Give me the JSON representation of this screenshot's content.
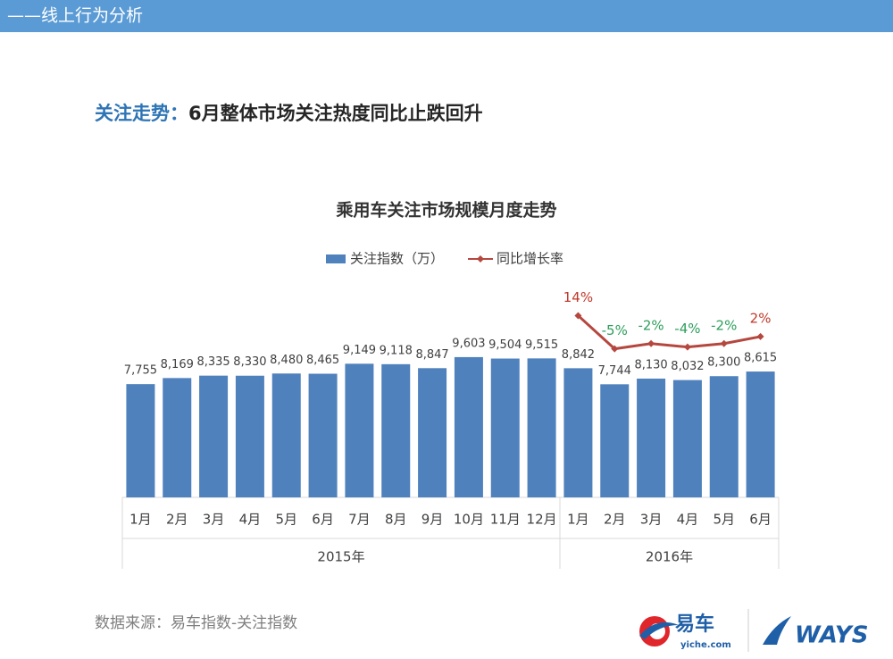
{
  "header": {
    "title": "——线上行为分析"
  },
  "heading": {
    "label": "关注走势：",
    "text": "6月整体市场关注热度同比止跌回升"
  },
  "chart_data": {
    "type": "bar",
    "title": "乘用车关注市场规模月度走势",
    "groups": [
      {
        "label": "2015年",
        "categories": [
          "1月",
          "2月",
          "3月",
          "4月",
          "5月",
          "6月",
          "7月",
          "8月",
          "9月",
          "10月",
          "11月",
          "12月"
        ]
      },
      {
        "label": "2016年",
        "categories": [
          "1月",
          "2月",
          "3月",
          "4月",
          "5月",
          "6月"
        ]
      }
    ],
    "ylim": [
      0,
      14000
    ],
    "y2lim": [
      -90,
      27
    ],
    "series": [
      {
        "name": "关注指数（万）",
        "type": "bar",
        "color": "#4f81bd",
        "values": [
          7755,
          8169,
          8335,
          8330,
          8480,
          8465,
          9149,
          9118,
          8847,
          9603,
          9504,
          9515,
          8842,
          7744,
          8130,
          8032,
          8300,
          8615
        ],
        "value_labels": [
          "7,755",
          "8,169",
          "8,335",
          "8,330",
          "8,480",
          "8,465",
          "9,149",
          "9,118",
          "8,847",
          "9,603",
          "9,504",
          "9,515",
          "8,842",
          "7,744",
          "8,130",
          "8,032",
          "8,300",
          "8,615"
        ]
      },
      {
        "name": "同比增长率",
        "type": "line",
        "axis": "y2",
        "color": "#b5473f",
        "positive_color": "#c0392b",
        "negative_color": "#2e9e5b",
        "values": [
          null,
          null,
          null,
          null,
          null,
          null,
          null,
          null,
          null,
          null,
          null,
          null,
          14,
          -5,
          -2,
          -4,
          -2,
          2
        ],
        "value_labels": [
          null,
          null,
          null,
          null,
          null,
          null,
          null,
          null,
          null,
          null,
          null,
          null,
          "14%",
          "-5%",
          "-2%",
          "-4%",
          "-2%",
          "2%"
        ]
      }
    ]
  },
  "source": "数据来源：易车指数-关注指数",
  "logos": {
    "yiche": "易车",
    "yiche_domain": "yiche.com",
    "ways": "WAYS"
  }
}
